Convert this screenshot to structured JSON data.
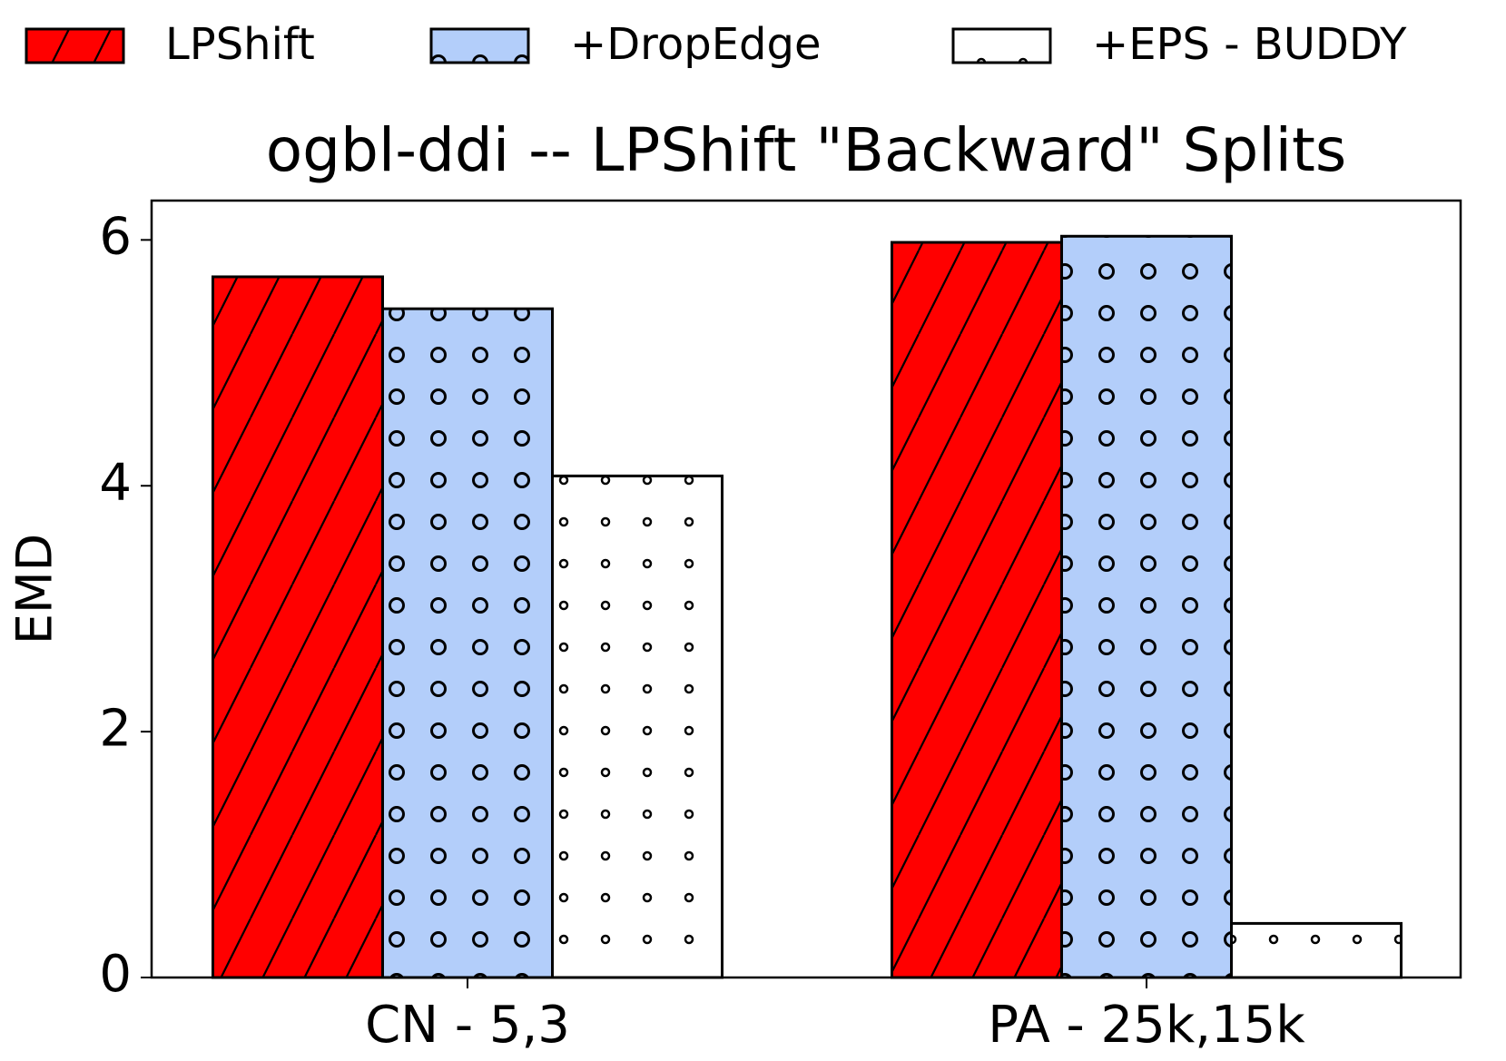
{
  "chart_data": {
    "type": "bar",
    "title": "ogbl-ddi -- LPShift \"Backward\" Splits",
    "y_label": "EMD",
    "categories": [
      "CN - 5,3",
      "PA - 25k,15k"
    ],
    "series": [
      {
        "name": "LPShift",
        "color": "#ff0000",
        "hatch": "/",
        "values": [
          5.7,
          5.98
        ]
      },
      {
        "name": "+DropEdge",
        "color": "#b3cefa",
        "hatch": "o",
        "values": [
          5.44,
          6.03
        ]
      },
      {
        "name": "+EPS - BUDDY",
        "color": "#ffffff",
        "hatch": ".",
        "values": [
          4.08,
          0.44
        ]
      }
    ],
    "ylim": [
      0,
      6.32
    ],
    "yticks": [
      0,
      2,
      4,
      6
    ],
    "grid": false,
    "legend": "top"
  }
}
